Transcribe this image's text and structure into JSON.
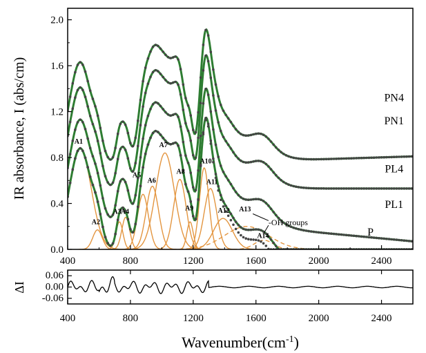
{
  "chart_data": [
    {
      "type": "line",
      "ylabel": "IR absorbance, I (abs/cm)",
      "xlim": [
        400,
        2600
      ],
      "ylim": [
        0,
        2.1
      ],
      "xticks": [
        400,
        800,
        1200,
        1600,
        2000,
        2400
      ],
      "xticklabels": [
        "400",
        "800",
        "1200",
        "1600",
        "2000",
        "2400"
      ],
      "yticks": [
        0.0,
        0.4,
        0.8,
        1.2,
        1.6,
        2.0
      ],
      "yticklabels": [
        "0.0",
        "0.4",
        "0.8",
        "1.2",
        "1.6",
        "2.0"
      ],
      "series": [
        {
          "name": "PN4",
          "offset": 0.75,
          "tail": 0.06
        },
        {
          "name": "PN1",
          "offset": 0.53,
          "tail": 0.0
        },
        {
          "name": "PL4",
          "offset": 0.25,
          "tail": -0.18
        },
        {
          "name": "PL1",
          "offset": 0.0,
          "tail": -0.23
        },
        {
          "name": "P",
          "offset": 0.0,
          "tail": -0.55
        }
      ],
      "peaks": [
        {
          "name": "A1",
          "center": 480,
          "height": 0.88,
          "width": 70
        },
        {
          "name": "A2",
          "center": 590,
          "height": 0.17,
          "width": 30
        },
        {
          "name": "A3",
          "center": 730,
          "height": 0.24,
          "width": 22
        },
        {
          "name": "A4",
          "center": 770,
          "height": 0.28,
          "width": 25
        },
        {
          "name": "A5",
          "center": 880,
          "height": 0.48,
          "width": 35
        },
        {
          "name": "A6",
          "center": 940,
          "height": 0.55,
          "width": 40
        },
        {
          "name": "A7",
          "center": 1020,
          "height": 0.84,
          "width": 60
        },
        {
          "name": "A8",
          "center": 1115,
          "height": 0.61,
          "width": 40
        },
        {
          "name": "A9",
          "center": 1180,
          "height": 0.24,
          "width": 20
        },
        {
          "name": "A10",
          "center": 1270,
          "height": 0.71,
          "width": 30
        },
        {
          "name": "A11",
          "center": 1310,
          "height": 0.53,
          "width": 40
        },
        {
          "name": "A12",
          "center": 1390,
          "height": 0.27,
          "width": 60
        },
        {
          "name": "A13",
          "center": 1540,
          "height": 0.2,
          "width": 140
        },
        {
          "name": "A14",
          "center": 1650,
          "height": 0.08,
          "width": 60
        }
      ],
      "annotations": [
        {
          "text": "-OH groups"
        }
      ],
      "colors": {
        "fit": "#2e7d32",
        "data_points": "#444444",
        "components": "#e3953f"
      }
    },
    {
      "type": "line",
      "ylabel": "ΔI",
      "xlabel": "Wavenumber(cm",
      "xlabel_superscript": "-1",
      "xlabel_suffix": ")",
      "xlim": [
        400,
        2600
      ],
      "ylim": [
        -0.09,
        0.09
      ],
      "xticks": [
        400,
        800,
        1200,
        1600,
        2000,
        2400
      ],
      "xticklabels": [
        "400",
        "800",
        "1200",
        "1600",
        "2000",
        "2400"
      ],
      "yticks": [
        0.06,
        0.0,
        -0.06
      ],
      "yticklabels": [
        "0.06",
        "0.00",
        "-0.06"
      ],
      "series": [
        {
          "name": "ΔI"
        }
      ]
    }
  ]
}
